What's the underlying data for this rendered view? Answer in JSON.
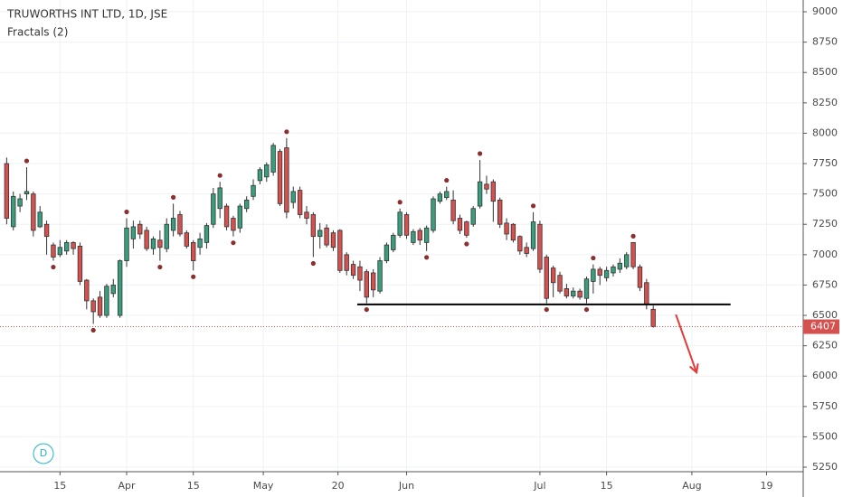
{
  "chart_data": {
    "type": "candlestick",
    "title": "TRUWORTHS INT LTD, 1D, JSE",
    "indicator": "Fractals (2)",
    "badge": "D",
    "up_color": "#3a9e7e",
    "down_color": "#d4514f",
    "fractal_color": "#8b2f2f",
    "open": [
      7750,
      7230,
      7400,
      7500,
      7500,
      7230,
      7250,
      7080,
      7000,
      7030,
      7100,
      7070,
      6790,
      6620,
      6650,
      6500,
      6680,
      6500,
      6950,
      7130,
      7250,
      7200,
      7050,
      7120,
      7050,
      7200,
      7330,
      7180,
      7100,
      7060,
      7100,
      7250,
      7380,
      7400,
      7300,
      7220,
      7380,
      7480,
      7610,
      7640,
      7680,
      7850,
      7880,
      7430,
      7530,
      7350,
      7330,
      7150,
      7220,
      7180,
      7200,
      7000,
      6920,
      6900,
      6860,
      6850,
      6700,
      6950,
      7040,
      7160,
      7330,
      7100,
      7200,
      7100,
      7200,
      7440,
      7470,
      7450,
      7300,
      7270,
      7250,
      7400,
      7580,
      7600,
      7450,
      7260,
      7250,
      7150,
      7060,
      7050,
      7250,
      6980,
      6890,
      6830,
      6720,
      6660,
      6700,
      6640,
      6780,
      6880,
      6810,
      6850,
      6880,
      6900,
      7100,
      6900,
      6770,
      6550
    ],
    "high": [
      7800,
      7520,
      7500,
      7720,
      7520,
      7400,
      7280,
      7100,
      7120,
      7120,
      7110,
      7100,
      6800,
      6640,
      6700,
      6760,
      6800,
      6960,
      7300,
      7280,
      7280,
      7230,
      7150,
      7200,
      7300,
      7420,
      7360,
      7200,
      7120,
      7180,
      7260,
      7550,
      7600,
      7420,
      7320,
      7420,
      7480,
      7620,
      7720,
      7760,
      7920,
      7870,
      7960,
      7560,
      7560,
      7400,
      7350,
      7260,
      7250,
      7200,
      7210,
      7020,
      6950,
      6950,
      6880,
      6880,
      6980,
      7100,
      7180,
      7380,
      7350,
      7210,
      7220,
      7240,
      7480,
      7520,
      7560,
      7530,
      7330,
      7280,
      7400,
      7780,
      7650,
      7620,
      7470,
      7300,
      7260,
      7160,
      7100,
      7350,
      7280,
      7000,
      6910,
      6860,
      6760,
      6730,
      6720,
      6820,
      6920,
      6900,
      6900,
      6920,
      6970,
      7020,
      7100,
      6920,
      6800,
      6580
    ],
    "low": [
      7250,
      7200,
      7350,
      7450,
      7150,
      7220,
      7000,
      6950,
      6980,
      7000,
      7000,
      6750,
      6550,
      6430,
      6480,
      6480,
      6650,
      6480,
      6900,
      7050,
      7130,
      7030,
      7000,
      6950,
      7020,
      7150,
      7150,
      7050,
      6870,
      7000,
      7050,
      7220,
      7300,
      7200,
      7150,
      7180,
      7350,
      7450,
      7580,
      7600,
      7650,
      7400,
      7300,
      7380,
      7300,
      7250,
      6980,
      7050,
      7060,
      7030,
      6850,
      6830,
      6800,
      6700,
      6600,
      6650,
      6680,
      6930,
      7020,
      7140,
      7130,
      7080,
      7080,
      7030,
      7180,
      7420,
      7450,
      7250,
      7170,
      7140,
      7230,
      7380,
      7500,
      7270,
      7220,
      7120,
      7100,
      7000,
      6980,
      7030,
      6850,
      6600,
      6650,
      6680,
      6640,
      6640,
      6630,
      6600,
      6680,
      6750,
      6780,
      6820,
      6850,
      6880,
      6880,
      6700,
      6550,
      6400
    ],
    "close": [
      7300,
      7480,
      7460,
      7520,
      7200,
      7350,
      7150,
      6980,
      7060,
      7100,
      7050,
      6780,
      6620,
      6530,
      6500,
      6740,
      6750,
      6950,
      7220,
      7230,
      7170,
      7050,
      7130,
      7060,
      7250,
      7300,
      7170,
      7070,
      6950,
      7130,
      7240,
      7500,
      7550,
      7230,
      7200,
      7400,
      7450,
      7570,
      7700,
      7740,
      7900,
      7420,
      7350,
      7520,
      7330,
      7300,
      7150,
      7200,
      7080,
      7060,
      6870,
      6870,
      6830,
      6790,
      6650,
      6710,
      6950,
      7080,
      7160,
      7350,
      7160,
      7190,
      7120,
      7220,
      7460,
      7500,
      7520,
      7280,
      7200,
      7160,
      7380,
      7600,
      7540,
      7440,
      7250,
      7170,
      7120,
      7030,
      7010,
      7270,
      6880,
      6640,
      6770,
      6700,
      6660,
      6700,
      6650,
      6800,
      6880,
      6830,
      6870,
      6900,
      6930,
      7000,
      6900,
      6730,
      6590,
      6407
    ],
    "last_price": 6407,
    "trend_line": {
      "x": [
        52.6,
        108.6
      ],
      "y": [
        6590,
        6590
      ],
      "color": "#000000"
    },
    "arrow": {
      "x": [
        100.4,
        103.5
      ],
      "y": [
        6507,
        6030
      ],
      "color": "#e53935"
    },
    "xlim": [
      -1,
      119.5
    ],
    "xticks": [
      {
        "value": 8,
        "label": "15"
      },
      {
        "value": 18,
        "label": "Apr"
      },
      {
        "value": 28,
        "label": "15"
      },
      {
        "value": 38.5,
        "label": "May"
      },
      {
        "value": 49.7,
        "label": "20"
      },
      {
        "value": 60,
        "label": "Jun"
      },
      {
        "value": 80,
        "label": "Jul"
      },
      {
        "value": 90,
        "label": "15"
      },
      {
        "value": 102.8,
        "label": "Aug"
      },
      {
        "value": 114,
        "label": "19"
      }
    ],
    "ylim": [
      5213,
      9097
    ],
    "yticks": [
      5250,
      5500,
      5750,
      6000,
      6250,
      6500,
      6750,
      7000,
      7250,
      7500,
      7750,
      8000,
      8250,
      8500,
      8750,
      9000
    ],
    "grid": true
  }
}
